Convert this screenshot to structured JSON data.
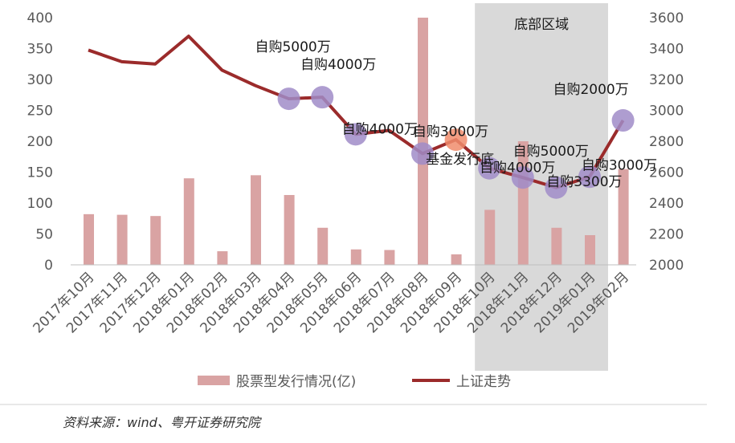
{
  "chart_data": {
    "type": "bar",
    "categories": [
      "2017年10月",
      "2017年11月",
      "2017年12月",
      "2018年01月",
      "2018年02月",
      "2018年03月",
      "2018年04月",
      "2018年05月",
      "2018年06月",
      "2018年07月",
      "2018年08月",
      "2018年09月",
      "2018年10月",
      "2018年11月",
      "2018年12月",
      "2019年01月",
      "2019年02月"
    ],
    "series": [
      {
        "name": "股票型发行情况(亿)",
        "type": "bar",
        "axis": "left",
        "color": "#d9a3a3",
        "values": [
          82,
          81,
          79,
          140,
          22,
          145,
          113,
          60,
          25,
          24,
          400,
          17,
          89,
          200,
          60,
          48,
          155
        ]
      },
      {
        "name": "上证走势",
        "type": "line",
        "axis": "right",
        "color": "#9b2b2b",
        "values": [
          3390,
          3315,
          3300,
          3480,
          3260,
          3160,
          3075,
          3085,
          2845,
          2870,
          2720,
          2810,
          2625,
          2565,
          2500,
          2570,
          2935
        ]
      }
    ],
    "ylim_left": [
      0,
      400
    ],
    "ylim_right": [
      2000,
      3600
    ],
    "yticks_left": [
      "0",
      "50",
      "100",
      "150",
      "200",
      "250",
      "300",
      "350",
      "400"
    ],
    "yticks_right": [
      "2000",
      "2200",
      "2400",
      "2600",
      "2800",
      "3000",
      "3200",
      "3400",
      "3600"
    ],
    "shaded_region": {
      "from": "2018年10月",
      "to": "2019年01月",
      "label": "底部区域",
      "color": "#d9d9d9"
    },
    "markers": [
      {
        "x": "2018年04月",
        "y": 3075,
        "color": "#a08cc8",
        "label": "自购5000万"
      },
      {
        "x": "2018年05月",
        "y": 3085,
        "color": "#a08cc8",
        "label": "自购4000万"
      },
      {
        "x": "2018年06月",
        "y": 2845,
        "color": "#a08cc8",
        "label": "自购4000万"
      },
      {
        "x": "2018年08月",
        "y": 2720,
        "color": "#a08cc8",
        "label": "自购3000万"
      },
      {
        "x": "2018年09月",
        "y": 2810,
        "color": "#f08c6c",
        "label": "基金发行底"
      },
      {
        "x": "2018年10月",
        "y": 2625,
        "color": "#a08cc8",
        "label": "自购4000万"
      },
      {
        "x": "2018年11月",
        "y": 2565,
        "color": "#a08cc8",
        "label": "自购5000万"
      },
      {
        "x": "2018年12月",
        "y": 2500,
        "color": "#a08cc8",
        "label": "自购3300万"
      },
      {
        "x": "2019年01月",
        "y": 2570,
        "color": "#a08cc8",
        "label": "自购3000万"
      },
      {
        "x": "2019年02月",
        "y": 2935,
        "color": "#a08cc8",
        "label": "自购2000万"
      }
    ],
    "legend": {
      "position": "bottom",
      "items": [
        "股票型发行情况(亿)",
        "上证走势"
      ]
    },
    "grid": false
  },
  "source": "资料来源：wind、粤开证券研究院"
}
